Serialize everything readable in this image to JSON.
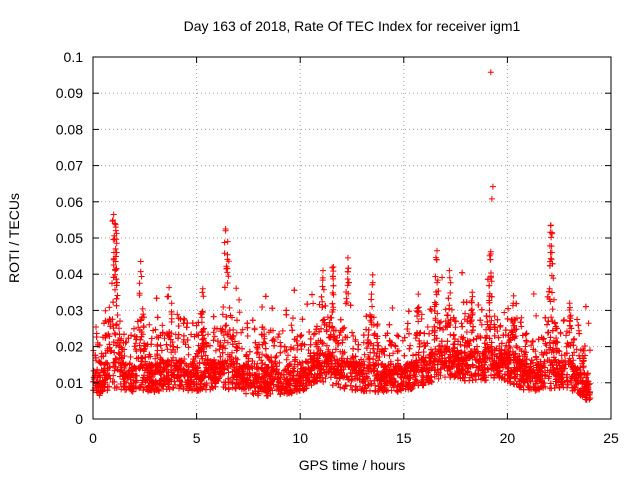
{
  "chart_data": {
    "type": "scatter",
    "title": "Day 163 of 2018, Rate Of TEC Index for receiver igm1",
    "xlabel": "GPS time / hours",
    "ylabel": "ROTI / TECUs",
    "xlim": [
      0,
      25
    ],
    "ylim": [
      0,
      0.1
    ],
    "grid": true,
    "marker": "+",
    "color": "#ff0000",
    "x_ticks": [
      0,
      5,
      10,
      15,
      20,
      25
    ],
    "x_tick_labels": [
      "0",
      "5",
      "10",
      "15",
      "20",
      "25"
    ],
    "y_ticks": [
      0,
      0.01,
      0.02,
      0.03,
      0.04,
      0.05,
      0.06,
      0.07,
      0.08,
      0.09,
      0.1
    ],
    "y_tick_labels": [
      "0",
      "0.01",
      "0.02",
      "0.03",
      "0.04",
      "0.05",
      "0.06",
      "0.07",
      "0.08",
      "0.09",
      "0.1"
    ],
    "series": [
      {
        "name": "ROTI",
        "x_range": [
          0,
          24
        ],
        "baseline": [
          [
            0,
            0.009
          ],
          [
            1,
            0.012
          ],
          [
            2,
            0.011
          ],
          [
            3,
            0.011
          ],
          [
            4,
            0.012
          ],
          [
            5,
            0.011
          ],
          [
            6,
            0.012
          ],
          [
            7,
            0.011
          ],
          [
            8,
            0.01
          ],
          [
            9,
            0.01
          ],
          [
            10,
            0.011
          ],
          [
            11,
            0.014
          ],
          [
            12,
            0.012
          ],
          [
            13,
            0.011
          ],
          [
            14,
            0.011
          ],
          [
            15,
            0.011
          ],
          [
            16,
            0.013
          ],
          [
            17,
            0.015
          ],
          [
            18,
            0.014
          ],
          [
            19,
            0.014
          ],
          [
            20,
            0.014
          ],
          [
            21,
            0.011
          ],
          [
            22,
            0.012
          ],
          [
            23,
            0.012
          ],
          [
            24,
            0.008
          ]
        ],
        "peaks": [
          [
            1.0,
            0.0565
          ],
          [
            1.05,
            0.054
          ],
          [
            1.1,
            0.053
          ],
          [
            2.3,
            0.0435
          ],
          [
            3.8,
            0.032
          ],
          [
            5.3,
            0.036
          ],
          [
            6.4,
            0.0525
          ],
          [
            6.5,
            0.049
          ],
          [
            11.1,
            0.041
          ],
          [
            11.6,
            0.042
          ],
          [
            12.3,
            0.0445
          ],
          [
            13.5,
            0.0398
          ],
          [
            15.7,
            0.0345
          ],
          [
            16.6,
            0.0465
          ],
          [
            17.2,
            0.041
          ],
          [
            18.3,
            0.035
          ],
          [
            19.2,
            0.0958
          ],
          [
            19.3,
            0.0642
          ],
          [
            19.25,
            0.0608
          ],
          [
            19.2,
            0.0462
          ],
          [
            20.3,
            0.034
          ],
          [
            22.1,
            0.0535
          ],
          [
            22.15,
            0.0515
          ],
          [
            23.0,
            0.032
          ]
        ],
        "generated_points": 5200
      }
    ]
  }
}
